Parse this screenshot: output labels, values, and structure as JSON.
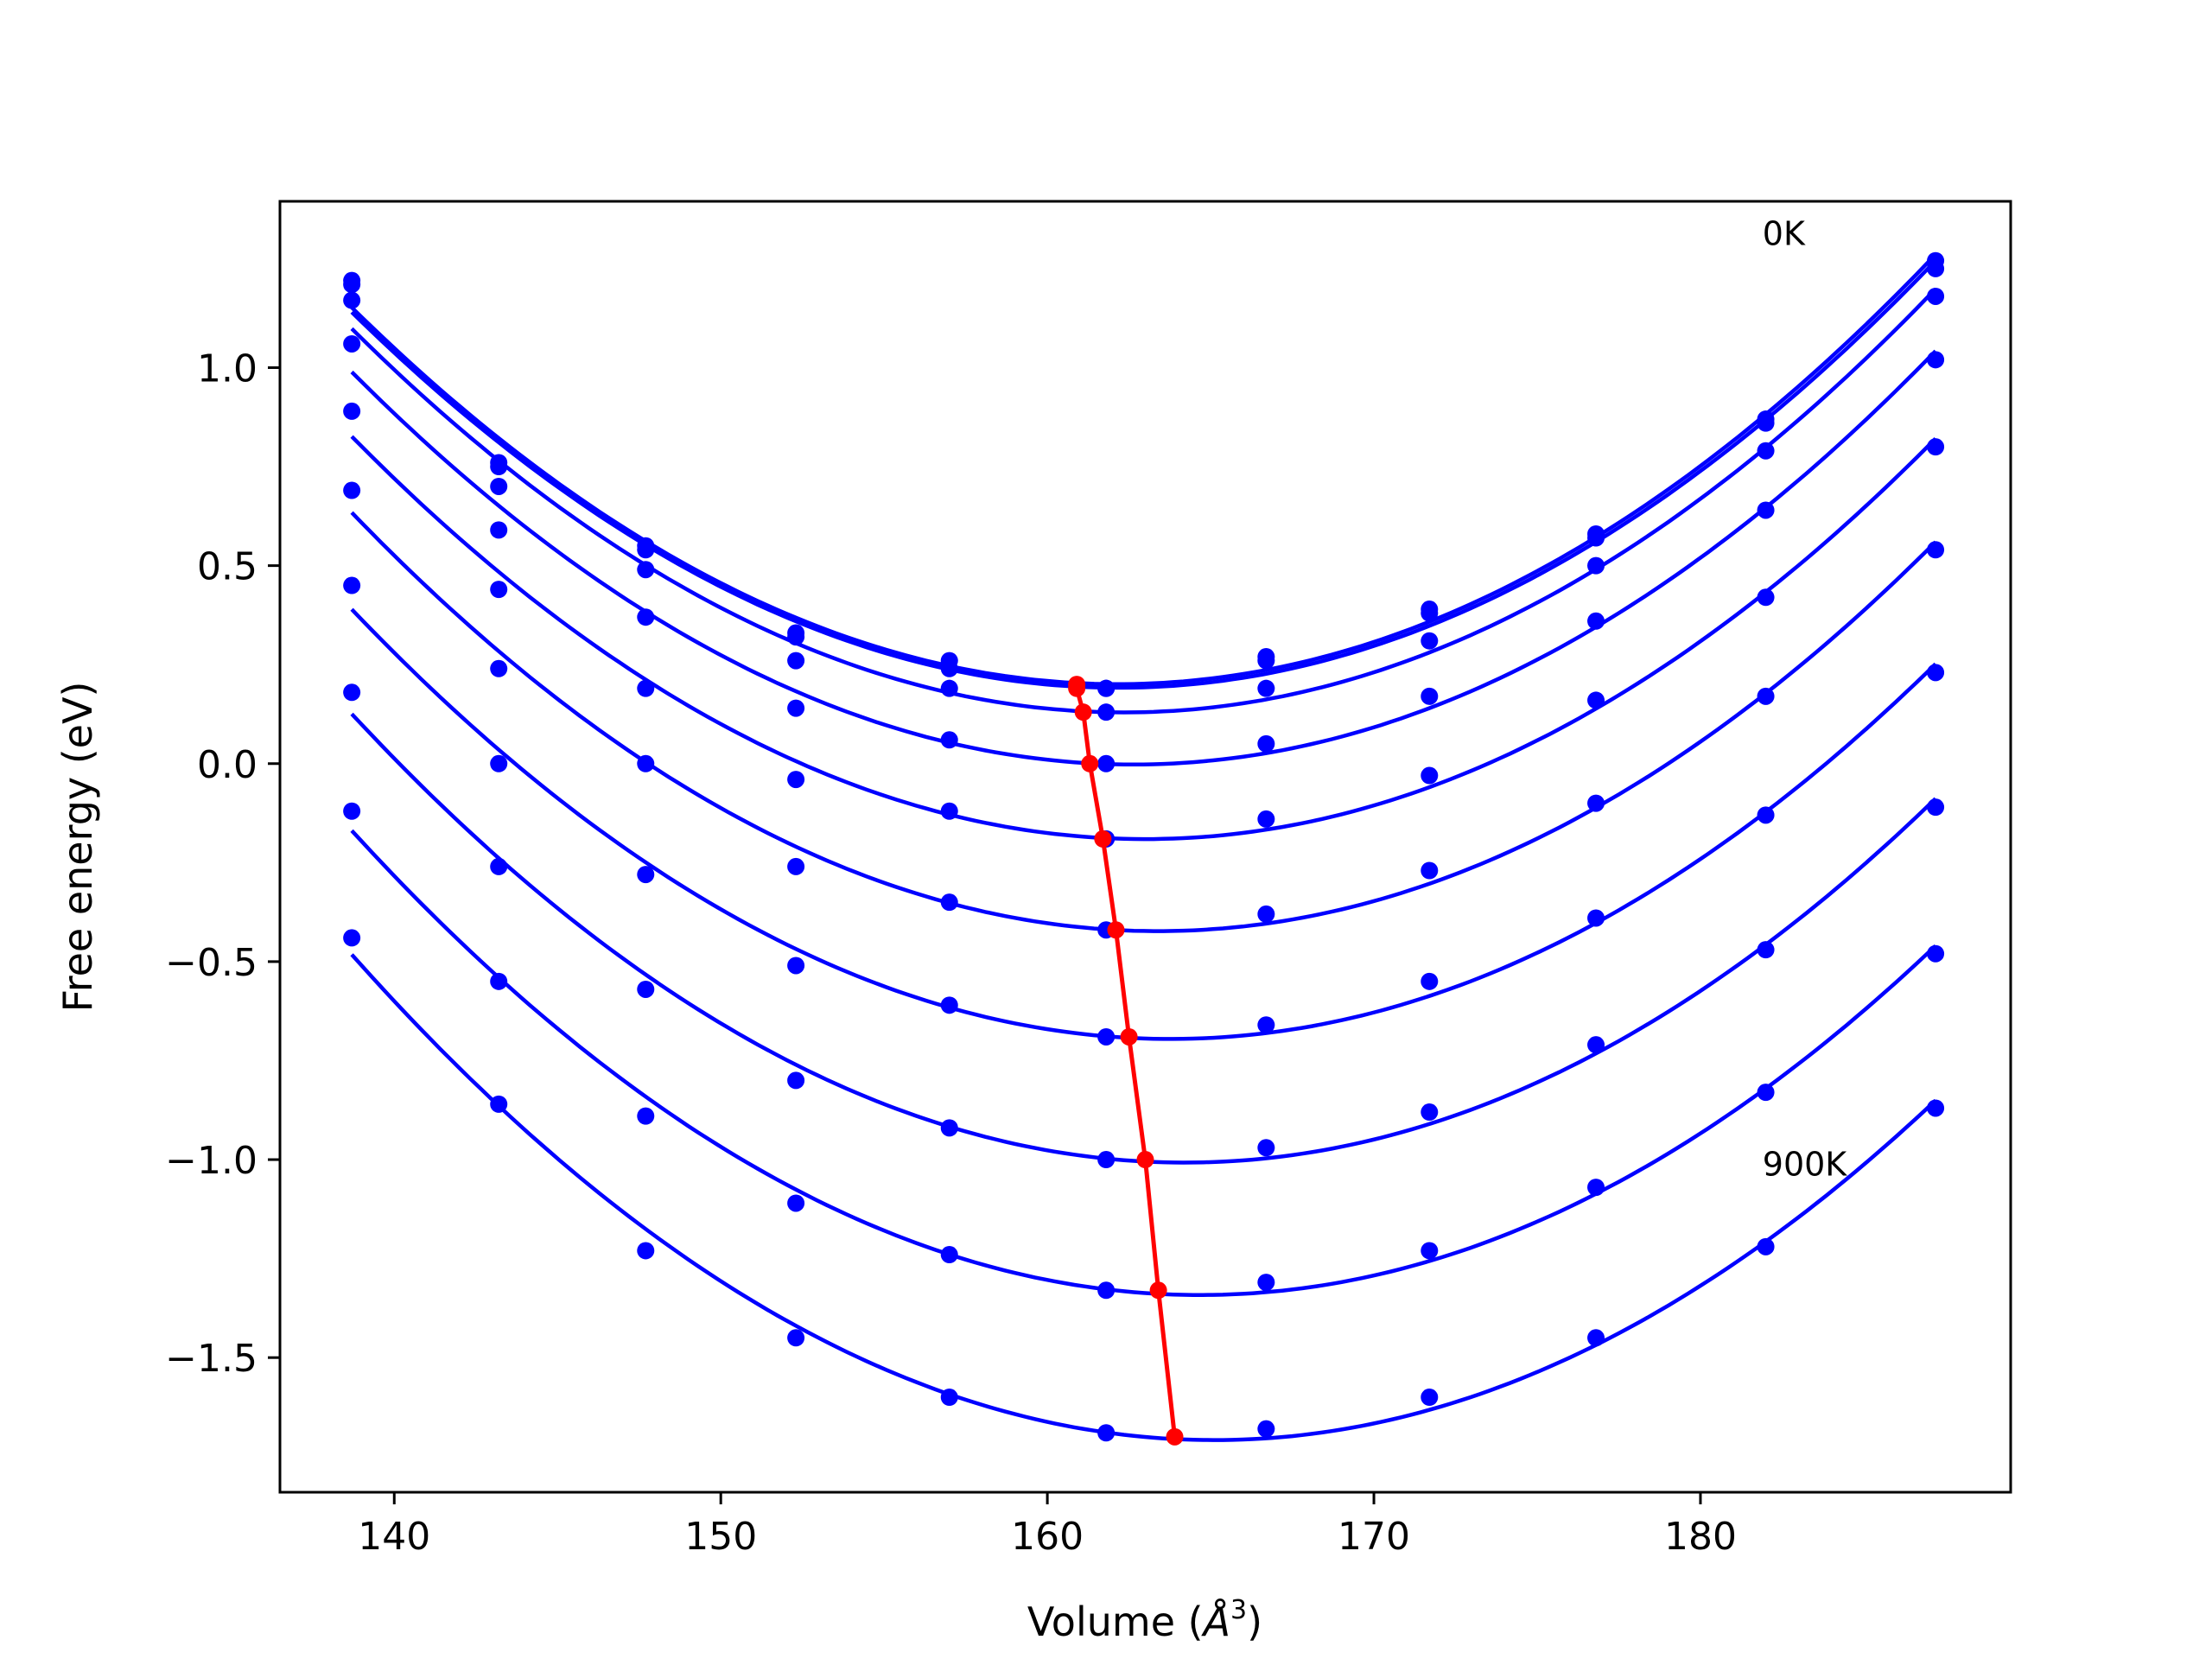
{
  "chart_data": {
    "type": "line",
    "xlabel": "Volume (",
    "xlabel_italic": "Å",
    "xlabel_sup": "3",
    "xlabel_end": ")",
    "ylabel": "Free energy (eV)",
    "xlim": [
      136.5,
      189.5
    ],
    "ylim": [
      -1.84,
      1.42
    ],
    "xticks": [
      140,
      150,
      160,
      170,
      180
    ],
    "xtick_labels": [
      "140",
      "150",
      "160",
      "170",
      "180"
    ],
    "yticks": [
      1.0,
      0.5,
      0.0,
      -0.5,
      -1.0,
      -1.5
    ],
    "ytick_labels": [
      "1.0",
      "0.5",
      "0.0",
      "−0.5",
      "−1.0",
      "−1.5"
    ],
    "grid": false,
    "annotations": [
      {
        "text": "0K",
        "x": 181.9,
        "y": 1.31
      },
      {
        "text": "900K",
        "x": 181.9,
        "y": -1.04
      }
    ],
    "series_color": "#0000ff",
    "min_line_color": "#ff0000",
    "volumes": [
      138.7,
      143.2,
      147.7,
      152.3,
      157.0,
      161.8,
      166.7,
      171.7,
      176.8,
      182.0,
      187.2
    ],
    "series": [
      {
        "y": [
          1.22,
          0.76,
          0.55,
          0.33,
          0.26,
          0.19,
          0.27,
          0.39,
          0.58,
          0.87,
          1.27
        ],
        "min": [
          160.9,
          0.2
        ]
      },
      {
        "y": [
          1.21,
          0.75,
          0.54,
          0.32,
          0.24,
          0.19,
          0.26,
          0.38,
          0.57,
          0.86,
          1.25
        ],
        "min": [
          160.9,
          0.19
        ]
      },
      {
        "y": [
          1.17,
          0.7,
          0.49,
          0.26,
          0.19,
          0.13,
          0.19,
          0.31,
          0.5,
          0.79,
          1.18
        ],
        "min": [
          161.1,
          0.13
        ]
      },
      {
        "y": [
          1.06,
          0.59,
          0.37,
          0.14,
          0.06,
          0.0,
          0.05,
          0.17,
          0.36,
          0.64,
          1.02
        ],
        "min": [
          161.3,
          0.0
        ]
      },
      {
        "y": [
          0.89,
          0.44,
          0.19,
          -0.04,
          -0.12,
          -0.19,
          -0.14,
          -0.03,
          0.16,
          0.42,
          0.8
        ],
        "min": [
          161.7,
          -0.19
        ]
      },
      {
        "y": [
          0.69,
          0.24,
          0.0,
          -0.26,
          -0.35,
          -0.42,
          -0.38,
          -0.27,
          -0.1,
          0.17,
          0.54
        ],
        "min": [
          162.1,
          -0.42
        ]
      },
      {
        "y": [
          0.45,
          0.0,
          -0.28,
          -0.51,
          -0.61,
          -0.69,
          -0.66,
          -0.55,
          -0.39,
          -0.13,
          0.23
        ],
        "min": [
          162.5,
          -0.69
        ]
      },
      {
        "y": [
          0.18,
          -0.26,
          -0.57,
          -0.8,
          -0.92,
          -1.0,
          -0.97,
          -0.88,
          -0.71,
          -0.47,
          -0.11
        ],
        "min": [
          163.0,
          -1.0
        ]
      },
      {
        "y": [
          -0.12,
          -0.55,
          -0.89,
          -1.11,
          -1.24,
          -1.33,
          -1.31,
          -1.23,
          -1.07,
          -0.83,
          -0.48
        ],
        "min": [
          163.4,
          -1.33
        ]
      },
      {
        "y": [
          -0.44,
          -0.86,
          -1.23,
          -1.45,
          -1.6,
          -1.69,
          -1.68,
          -1.6,
          -1.45,
          -1.22,
          -0.87
        ],
        "min": [
          163.9,
          -1.7
        ]
      }
    ]
  }
}
